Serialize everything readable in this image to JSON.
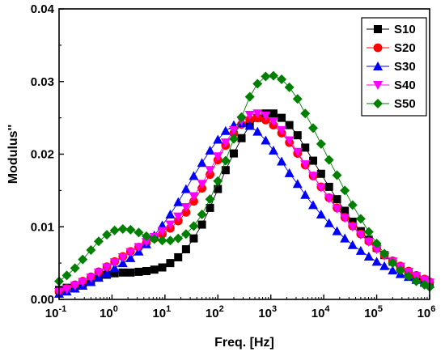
{
  "chart_data": {
    "type": "scatter",
    "xlabel": "Freq. [Hz]",
    "ylabel": "Modulus''",
    "x_scale": "log",
    "xlim": [
      0.1,
      1000000
    ],
    "ylim": [
      0,
      0.04
    ],
    "x_ticks": [
      {
        "value": 0.1,
        "base": "10",
        "exp": "-1"
      },
      {
        "value": 1,
        "base": "10",
        "exp": "0"
      },
      {
        "value": 10,
        "base": "10",
        "exp": "1"
      },
      {
        "value": 100,
        "base": "10",
        "exp": "2"
      },
      {
        "value": 1000,
        "base": "10",
        "exp": "3"
      },
      {
        "value": 10000,
        "base": "10",
        "exp": "4"
      },
      {
        "value": 100000,
        "base": "10",
        "exp": "5"
      },
      {
        "value": 1000000,
        "base": "10",
        "exp": "6"
      }
    ],
    "y_ticks": [
      {
        "value": 0.0,
        "label": "0.00"
      },
      {
        "value": 0.01,
        "label": "0.01"
      },
      {
        "value": 0.02,
        "label": "0.02"
      },
      {
        "value": 0.03,
        "label": "0.03"
      },
      {
        "value": 0.04,
        "label": "0.04"
      }
    ],
    "legend_position": "top-right",
    "x": [
      0.1,
      0.14,
      0.2,
      0.28,
      0.4,
      0.56,
      0.8,
      1.12,
      1.6,
      2.24,
      3.2,
      4.47,
      6.3,
      8.9,
      12.6,
      17.8,
      25,
      35,
      50,
      71,
      100,
      140,
      200,
      280,
      400,
      560,
      800,
      1120,
      1600,
      2240,
      3200,
      4470,
      6300,
      8900,
      12600,
      17800,
      25000,
      35000,
      50000,
      71000,
      100000,
      140000,
      200000,
      280000,
      400000,
      560000,
      800000,
      1000000
    ],
    "series": [
      {
        "name": "S10",
        "color": "#000000",
        "marker": "square",
        "values": [
          0.0013,
          0.0016,
          0.0019,
          0.0022,
          0.0026,
          0.003,
          0.0034,
          0.0036,
          0.0037,
          0.0037,
          0.0038,
          0.0039,
          0.0041,
          0.0044,
          0.005,
          0.0058,
          0.0069,
          0.0084,
          0.0103,
          0.0126,
          0.0152,
          0.0178,
          0.0201,
          0.0222,
          0.0239,
          0.025,
          0.0256,
          0.0256,
          0.025,
          0.024,
          0.0226,
          0.0209,
          0.0191,
          0.0173,
          0.0155,
          0.0138,
          0.0122,
          0.0107,
          0.0094,
          0.0082,
          0.0071,
          0.0061,
          0.0052,
          0.0044,
          0.0037,
          0.0031,
          0.0026,
          0.0023
        ]
      },
      {
        "name": "S20",
        "color": "#ff0000",
        "marker": "circle",
        "values": [
          0.0011,
          0.0015,
          0.002,
          0.0025,
          0.0031,
          0.0038,
          0.0045,
          0.0052,
          0.0059,
          0.0066,
          0.0072,
          0.0078,
          0.0084,
          0.009,
          0.0098,
          0.0108,
          0.012,
          0.0135,
          0.0153,
          0.0172,
          0.0192,
          0.0212,
          0.0229,
          0.0241,
          0.0248,
          0.025,
          0.0247,
          0.024,
          0.0229,
          0.0216,
          0.0201,
          0.0185,
          0.017,
          0.0155,
          0.014,
          0.0126,
          0.0113,
          0.0101,
          0.009,
          0.008,
          0.007,
          0.0061,
          0.0053,
          0.0046,
          0.0039,
          0.0033,
          0.0028,
          0.0024
        ]
      },
      {
        "name": "S30",
        "color": "#0000ff",
        "marker": "triangle-up",
        "values": [
          0.0008,
          0.0011,
          0.0015,
          0.0019,
          0.0024,
          0.003,
          0.0036,
          0.0043,
          0.005,
          0.0057,
          0.0066,
          0.0076,
          0.0088,
          0.0102,
          0.0117,
          0.0134,
          0.0152,
          0.017,
          0.0188,
          0.0205,
          0.022,
          0.0232,
          0.024,
          0.0243,
          0.0239,
          0.0231,
          0.0219,
          0.0205,
          0.019,
          0.0174,
          0.0159,
          0.0144,
          0.013,
          0.0117,
          0.0105,
          0.0094,
          0.0084,
          0.0075,
          0.0067,
          0.0059,
          0.0052,
          0.0046,
          0.004,
          0.0035,
          0.0031,
          0.0027,
          0.0023,
          0.0021
        ]
      },
      {
        "name": "S40",
        "color": "#ff00ff",
        "marker": "triangle-down",
        "values": [
          0.001,
          0.0014,
          0.0019,
          0.0024,
          0.003,
          0.0037,
          0.0044,
          0.0051,
          0.0058,
          0.0065,
          0.0072,
          0.0079,
          0.0086,
          0.0094,
          0.0103,
          0.0114,
          0.0127,
          0.0142,
          0.0159,
          0.0178,
          0.0197,
          0.0216,
          0.0233,
          0.0246,
          0.0254,
          0.0256,
          0.0253,
          0.0245,
          0.0233,
          0.0219,
          0.0203,
          0.0186,
          0.017,
          0.0154,
          0.0139,
          0.0125,
          0.0112,
          0.01,
          0.0089,
          0.0079,
          0.0069,
          0.006,
          0.0052,
          0.0045,
          0.0038,
          0.0032,
          0.0027,
          0.0023
        ]
      },
      {
        "name": "S50",
        "color": "#008000",
        "marker": "diamond",
        "values": [
          0.0025,
          0.0033,
          0.0043,
          0.0055,
          0.0068,
          0.008,
          0.0089,
          0.0095,
          0.0097,
          0.0096,
          0.0092,
          0.0087,
          0.0083,
          0.0081,
          0.0081,
          0.0084,
          0.009,
          0.0101,
          0.0117,
          0.0138,
          0.0163,
          0.0191,
          0.0221,
          0.0251,
          0.0279,
          0.0297,
          0.0307,
          0.0308,
          0.0303,
          0.0292,
          0.0276,
          0.0256,
          0.0236,
          0.0214,
          0.0192,
          0.0171,
          0.015,
          0.013,
          0.0111,
          0.0093,
          0.0077,
          0.0063,
          0.005,
          0.004,
          0.0032,
          0.0025,
          0.002,
          0.0017
        ]
      }
    ]
  }
}
